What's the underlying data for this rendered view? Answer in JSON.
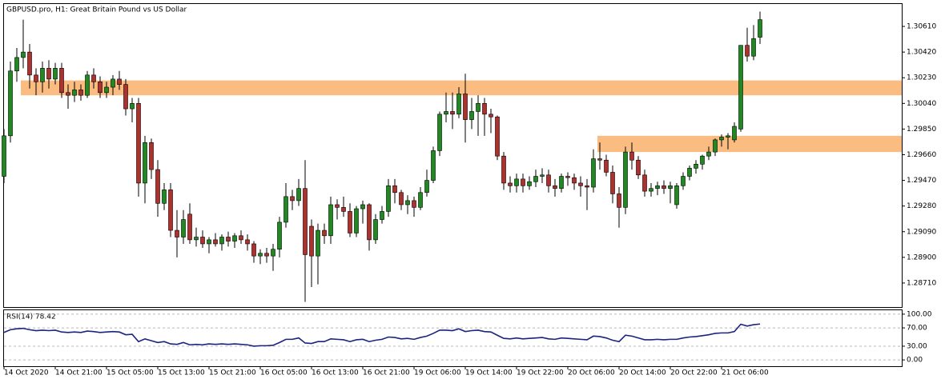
{
  "chart_data": [
    {
      "type": "candlestick",
      "title": "GBPUSD.pro, H1:  Great Britain Pound vs US Dollar",
      "categories": [
        "14 Oct 2020",
        null,
        null,
        null,
        null,
        null,
        null,
        null,
        "14 Oct 21:00",
        null,
        null,
        null,
        null,
        null,
        null,
        null,
        "15 Oct 05:00",
        null,
        null,
        null,
        null,
        null,
        null,
        null,
        "15 Oct 13:00",
        null,
        null,
        null,
        null,
        null,
        null,
        null,
        "15 Oct 21:00",
        null,
        null,
        null,
        null,
        null,
        null,
        null,
        "16 Oct 05:00",
        null,
        null,
        null,
        null,
        null,
        null,
        null,
        "16 Oct 13:00",
        null,
        null,
        null,
        null,
        null,
        null,
        null,
        "16 Oct 21:00",
        null,
        null,
        null,
        null,
        null,
        null,
        null,
        "19 Oct 06:00",
        null,
        null,
        null,
        null,
        null,
        null,
        null,
        "19 Oct 14:00",
        null,
        null,
        null,
        null,
        null,
        null,
        null,
        "19 Oct 22:00",
        null,
        null,
        null,
        null,
        null,
        null,
        null,
        "20 Oct 06:00",
        null,
        null,
        null,
        null,
        null,
        null,
        null,
        "20 Oct 14:00",
        null,
        null,
        null,
        null,
        null,
        null,
        null,
        "20 Oct 22:00",
        null,
        null,
        null,
        null,
        null,
        null,
        null,
        "21 Oct 06:00",
        null,
        null,
        null,
        null,
        null,
        null
      ],
      "candles": [
        [
          1.295,
          1.2985,
          1.2945,
          1.298
        ],
        [
          1.298,
          1.3035,
          1.2975,
          1.3028
        ],
        [
          1.3028,
          1.3045,
          1.302,
          1.3038
        ],
        [
          1.3038,
          1.3066,
          1.303,
          1.3042
        ],
        [
          1.3042,
          1.3048,
          1.3015,
          1.3025
        ],
        [
          1.3025,
          1.303,
          1.301,
          1.302
        ],
        [
          1.302,
          1.3035,
          1.3012,
          1.303
        ],
        [
          1.303,
          1.3036,
          1.3015,
          1.3022
        ],
        [
          1.3022,
          1.3034,
          1.3018,
          1.303
        ],
        [
          1.303,
          1.3034,
          1.3008,
          1.3012
        ],
        [
          1.3012,
          1.3018,
          1.3,
          1.301
        ],
        [
          1.301,
          1.302,
          1.3005,
          1.3014
        ],
        [
          1.3014,
          1.3018,
          1.3006,
          1.301
        ],
        [
          1.301,
          1.3028,
          1.3008,
          1.3025
        ],
        [
          1.3025,
          1.303,
          1.3015,
          1.302
        ],
        [
          1.302,
          1.3024,
          1.3008,
          1.3012
        ],
        [
          1.3012,
          1.302,
          1.3008,
          1.3016
        ],
        [
          1.3016,
          1.3025,
          1.301,
          1.3022
        ],
        [
          1.3022,
          1.3028,
          1.3014,
          1.3018
        ],
        [
          1.3018,
          1.3022,
          1.2995,
          1.3
        ],
        [
          1.3,
          1.3008,
          1.299,
          1.3004
        ],
        [
          1.3004,
          1.3008,
          1.2935,
          1.2945
        ],
        [
          1.2945,
          1.298,
          1.293,
          1.2975
        ],
        [
          1.2975,
          1.2978,
          1.2948,
          1.2955
        ],
        [
          1.2955,
          1.2962,
          1.292,
          1.293
        ],
        [
          1.293,
          1.2945,
          1.2925,
          1.294
        ],
        [
          1.294,
          1.2945,
          1.2905,
          1.291
        ],
        [
          1.291,
          1.2925,
          1.289,
          1.2905
        ],
        [
          1.2905,
          1.2925,
          1.29,
          1.2918
        ],
        [
          1.2922,
          1.293,
          1.29,
          1.2903
        ],
        [
          1.2903,
          1.2912,
          1.2898,
          1.2905
        ],
        [
          1.2905,
          1.291,
          1.2897,
          1.29
        ],
        [
          1.29,
          1.2905,
          1.2893,
          1.2903
        ],
        [
          1.2903,
          1.2908,
          1.2898,
          1.29
        ],
        [
          1.29,
          1.2907,
          1.2895,
          1.2905
        ],
        [
          1.2905,
          1.2909,
          1.2898,
          1.2902
        ],
        [
          1.2902,
          1.2908,
          1.2897,
          1.2906
        ],
        [
          1.2906,
          1.291,
          1.29,
          1.2903
        ],
        [
          1.2903,
          1.2907,
          1.2895,
          1.29
        ],
        [
          1.29,
          1.2902,
          1.2886,
          1.2891
        ],
        [
          1.2891,
          1.2896,
          1.2885,
          1.2893
        ],
        [
          1.2893,
          1.2897,
          1.2886,
          1.2891
        ],
        [
          1.2891,
          1.29,
          1.288,
          1.2896
        ],
        [
          1.2896,
          1.292,
          1.289,
          1.2916
        ],
        [
          1.2916,
          1.2945,
          1.2912,
          1.2935
        ],
        [
          1.2935,
          1.294,
          1.2925,
          1.2932
        ],
        [
          1.2932,
          1.2948,
          1.2928,
          1.2941
        ],
        [
          1.2941,
          1.2962,
          1.2857,
          1.2892
        ],
        [
          1.2913,
          1.2918,
          1.2868,
          1.2891
        ],
        [
          1.2891,
          1.2915,
          1.287,
          1.291
        ],
        [
          1.291,
          1.2915,
          1.29,
          1.2906
        ],
        [
          1.2906,
          1.2935,
          1.29,
          1.2929
        ],
        [
          1.2929,
          1.2933,
          1.2918,
          1.2927
        ],
        [
          1.2927,
          1.2935,
          1.292,
          1.2924
        ],
        [
          1.2924,
          1.293,
          1.2905,
          1.2908
        ],
        [
          1.2908,
          1.2928,
          1.2905,
          1.2926
        ],
        [
          1.2926,
          1.2932,
          1.2915,
          1.2929
        ],
        [
          1.2929,
          1.293,
          1.2895,
          1.2903
        ],
        [
          1.2903,
          1.2922,
          1.29,
          1.2918
        ],
        [
          1.2918,
          1.2928,
          1.2915,
          1.2924
        ],
        [
          1.2924,
          1.2948,
          1.292,
          1.2943
        ],
        [
          1.2943,
          1.2948,
          1.293,
          1.2938
        ],
        [
          1.2938,
          1.294,
          1.2925,
          1.2929
        ],
        [
          1.2929,
          1.2936,
          1.2922,
          1.2932
        ],
        [
          1.2932,
          1.2935,
          1.292,
          1.2927
        ],
        [
          1.2927,
          1.2942,
          1.2925,
          1.2938
        ],
        [
          1.2938,
          1.2955,
          1.2935,
          1.2947
        ],
        [
          1.2947,
          1.2972,
          1.2945,
          1.2969
        ],
        [
          1.2969,
          1.2998,
          1.2965,
          1.2996
        ],
        [
          1.2996,
          1.3012,
          1.299,
          1.2998
        ],
        [
          1.2998,
          1.3012,
          1.2985,
          1.2996
        ],
        [
          1.2996,
          1.3016,
          1.2993,
          1.3011
        ],
        [
          1.3011,
          1.3026,
          1.2975,
          1.2992
        ],
        [
          1.2992,
          1.3008,
          1.2985,
          1.2998
        ],
        [
          1.2998,
          1.301,
          1.298,
          1.3004
        ],
        [
          1.3004,
          1.3008,
          1.298,
          1.2996
        ],
        [
          1.2996,
          1.3,
          1.2982,
          1.2994
        ],
        [
          1.2994,
          1.2995,
          1.2962,
          1.2965
        ],
        [
          1.2965,
          1.2968,
          1.294,
          1.2945
        ],
        [
          1.2945,
          1.295,
          1.2938,
          1.2943
        ],
        [
          1.2943,
          1.2952,
          1.2938,
          1.2948
        ],
        [
          1.2948,
          1.2952,
          1.2938,
          1.2943
        ],
        [
          1.2943,
          1.295,
          1.294,
          1.2946
        ],
        [
          1.2946,
          1.2955,
          1.2942,
          1.295
        ],
        [
          1.295,
          1.2956,
          1.2945,
          1.2951
        ],
        [
          1.2951,
          1.2955,
          1.2938,
          1.2943
        ],
        [
          1.2943,
          1.2948,
          1.2935,
          1.2941
        ],
        [
          1.2941,
          1.2952,
          1.2938,
          1.295
        ],
        [
          1.295,
          1.2953,
          1.2943,
          1.2949
        ],
        [
          1.2949,
          1.2952,
          1.294,
          1.2945
        ],
        [
          1.2945,
          1.295,
          1.2935,
          1.2943
        ],
        [
          1.2943,
          1.2948,
          1.2925,
          1.2942
        ],
        [
          1.2942,
          1.297,
          1.2938,
          1.2963
        ],
        [
          1.2963,
          1.2975,
          1.2955,
          1.2962
        ],
        [
          1.2962,
          1.2966,
          1.295,
          1.2953
        ],
        [
          1.2953,
          1.2958,
          1.293,
          1.2937
        ],
        [
          1.2937,
          1.2942,
          1.2912,
          1.2927
        ],
        [
          1.2927,
          1.2972,
          1.2922,
          1.2968
        ],
        [
          1.2968,
          1.2975,
          1.2955,
          1.2962
        ],
        [
          1.2962,
          1.2965,
          1.2948,
          1.2951
        ],
        [
          1.2951,
          1.2955,
          1.2935,
          1.2939
        ],
        [
          1.2939,
          1.2945,
          1.2935,
          1.2941
        ],
        [
          1.2941,
          1.2946,
          1.2936,
          1.2943
        ],
        [
          1.2943,
          1.2947,
          1.2937,
          1.2941
        ],
        [
          1.2941,
          1.2946,
          1.293,
          1.2943
        ],
        [
          1.2929,
          1.2945,
          1.2926,
          1.2943
        ],
        [
          1.2943,
          1.2953,
          1.294,
          1.295
        ],
        [
          1.295,
          1.2958,
          1.2947,
          1.2956
        ],
        [
          1.2956,
          1.2962,
          1.2952,
          1.2959
        ],
        [
          1.2959,
          1.2966,
          1.2955,
          1.2965
        ],
        [
          1.2965,
          1.2972,
          1.2962,
          1.2968
        ],
        [
          1.2968,
          1.2978,
          1.2965,
          1.2977
        ],
        [
          1.2977,
          1.2981,
          1.2972,
          1.2979
        ],
        [
          1.2979,
          1.2982,
          1.297,
          1.298
        ],
        [
          1.2977,
          1.299,
          1.2975,
          1.2987
        ],
        [
          1.2985,
          1.3047,
          1.2983,
          1.3047
        ],
        [
          1.3047,
          1.306,
          1.3035,
          1.3039
        ],
        [
          1.3039,
          1.3062,
          1.3036,
          1.3052
        ],
        [
          1.3053,
          1.3072,
          1.3048,
          1.3066
        ]
      ],
      "up_color": "#1f8a1f",
      "down_color": "#b0312b",
      "zones": [
        {
          "top": 1.3021,
          "bottom": 1.301,
          "start": 3
        },
        {
          "top": 1.298,
          "bottom": 1.2968,
          "start": 93
        }
      ],
      "zone_color": "#f9b06b",
      "ylim": [
        1.30776,
        1.28532
      ],
      "yticks": [
        {
          "value": 1.3061,
          "label": "1.30610"
        },
        {
          "value": 1.3042,
          "label": "1.30420"
        },
        {
          "value": 1.3023,
          "label": "1.30230"
        },
        {
          "value": 1.3004,
          "label": "1.30040"
        },
        {
          "value": 1.2985,
          "label": "1.29850"
        },
        {
          "value": 1.2966,
          "label": "1.29660"
        },
        {
          "value": 1.2947,
          "label": "1.29470"
        },
        {
          "value": 1.2928,
          "label": "1.29280"
        },
        {
          "value": 1.2909,
          "label": "1.29090"
        },
        {
          "value": 1.289,
          "label": "1.28900"
        },
        {
          "value": 1.2871,
          "label": "1.28710"
        }
      ]
    },
    {
      "type": "line",
      "title": "RSI(14) 78.42",
      "color": "#1a237e",
      "values": [
        60,
        66,
        68,
        69,
        66,
        64,
        65,
        64,
        65,
        61,
        60,
        61,
        60,
        63,
        62,
        60,
        61,
        62,
        61,
        55,
        56,
        40,
        46,
        42,
        38,
        40,
        35,
        34,
        38,
        33,
        34,
        33,
        35,
        34,
        35,
        34,
        35,
        34,
        33,
        30,
        31,
        31,
        32,
        38,
        45,
        45,
        48,
        37,
        36,
        40,
        40,
        46,
        45,
        44,
        40,
        44,
        45,
        40,
        43,
        45,
        50,
        49,
        46,
        47,
        45,
        49,
        52,
        58,
        65,
        65,
        64,
        68,
        62,
        64,
        65,
        62,
        61,
        54,
        47,
        46,
        48,
        46,
        47,
        48,
        49,
        46,
        45,
        48,
        47,
        46,
        45,
        44,
        52,
        51,
        48,
        43,
        40,
        54,
        52,
        48,
        44,
        44,
        45,
        44,
        45,
        45,
        48,
        50,
        51,
        53,
        55,
        58,
        59,
        59,
        62,
        78,
        74,
        77,
        78.42
      ],
      "ylim": [
        108.6,
        -13.8
      ],
      "yticks": [
        {
          "value": 100,
          "label": "100.00"
        },
        {
          "value": 70,
          "label": "70.00"
        },
        {
          "value": 30,
          "label": "30.00"
        },
        {
          "value": 0,
          "label": "0.00"
        }
      ]
    }
  ]
}
